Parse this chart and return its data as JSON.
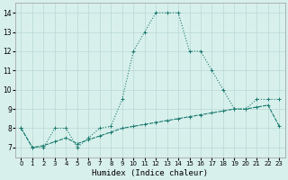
{
  "xlabel": "Humidex (Indice chaleur)",
  "x": [
    0,
    1,
    2,
    3,
    4,
    5,
    6,
    7,
    8,
    9,
    10,
    11,
    12,
    13,
    14,
    15,
    16,
    17,
    18,
    19,
    20,
    21,
    22,
    23
  ],
  "y_main": [
    8.0,
    7.0,
    7.0,
    8.0,
    8.0,
    7.0,
    7.5,
    8.0,
    8.1,
    9.5,
    12.0,
    13.0,
    14.0,
    14.0,
    14.0,
    12.0,
    12.0,
    11.0,
    10.0,
    9.0,
    9.0,
    9.5,
    9.5,
    9.5
  ],
  "y_base": [
    8.0,
    7.0,
    7.1,
    7.3,
    7.5,
    7.2,
    7.4,
    7.6,
    7.8,
    8.0,
    8.1,
    8.2,
    8.3,
    8.4,
    8.5,
    8.6,
    8.7,
    8.8,
    8.9,
    9.0,
    9.0,
    9.1,
    9.2,
    8.1
  ],
  "ylim": [
    6.5,
    14.5
  ],
  "xlim": [
    -0.5,
    23.5
  ],
  "yticks": [
    7,
    8,
    9,
    10,
    11,
    12,
    13,
    14
  ],
  "xticks": [
    0,
    1,
    2,
    3,
    4,
    5,
    6,
    7,
    8,
    9,
    10,
    11,
    12,
    13,
    14,
    15,
    16,
    17,
    18,
    19,
    20,
    21,
    22,
    23
  ],
  "line_color": "#1a7a6e",
  "bg_color": "#d8f0ec",
  "grid_color": "#b8d8d4"
}
